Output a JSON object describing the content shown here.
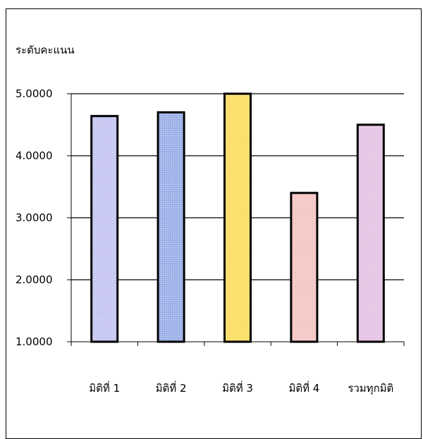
{
  "chart_data": {
    "type": "bar",
    "title": "",
    "ylabel": "ระดับคะแนน",
    "xlabel": "",
    "categories": [
      "มิติที่ 1",
      "มิติที่ 2",
      "มิติที่ 3",
      "มิติที่ 4",
      "รวมทุกมิติ"
    ],
    "values": [
      4.64,
      4.7,
      5.0,
      3.4,
      4.5
    ],
    "ylim": [
      1,
      5
    ],
    "yticks": [
      "1.0000",
      "2.0000",
      "3.0000",
      "4.0000",
      "5.0000"
    ],
    "grid": true,
    "legend": "none",
    "colors": [
      "#c8c8f4",
      "#9fb3ea",
      "#ffe066",
      "#f8c8c8",
      "#e8c6e6"
    ],
    "bar_outline": "#000000"
  }
}
